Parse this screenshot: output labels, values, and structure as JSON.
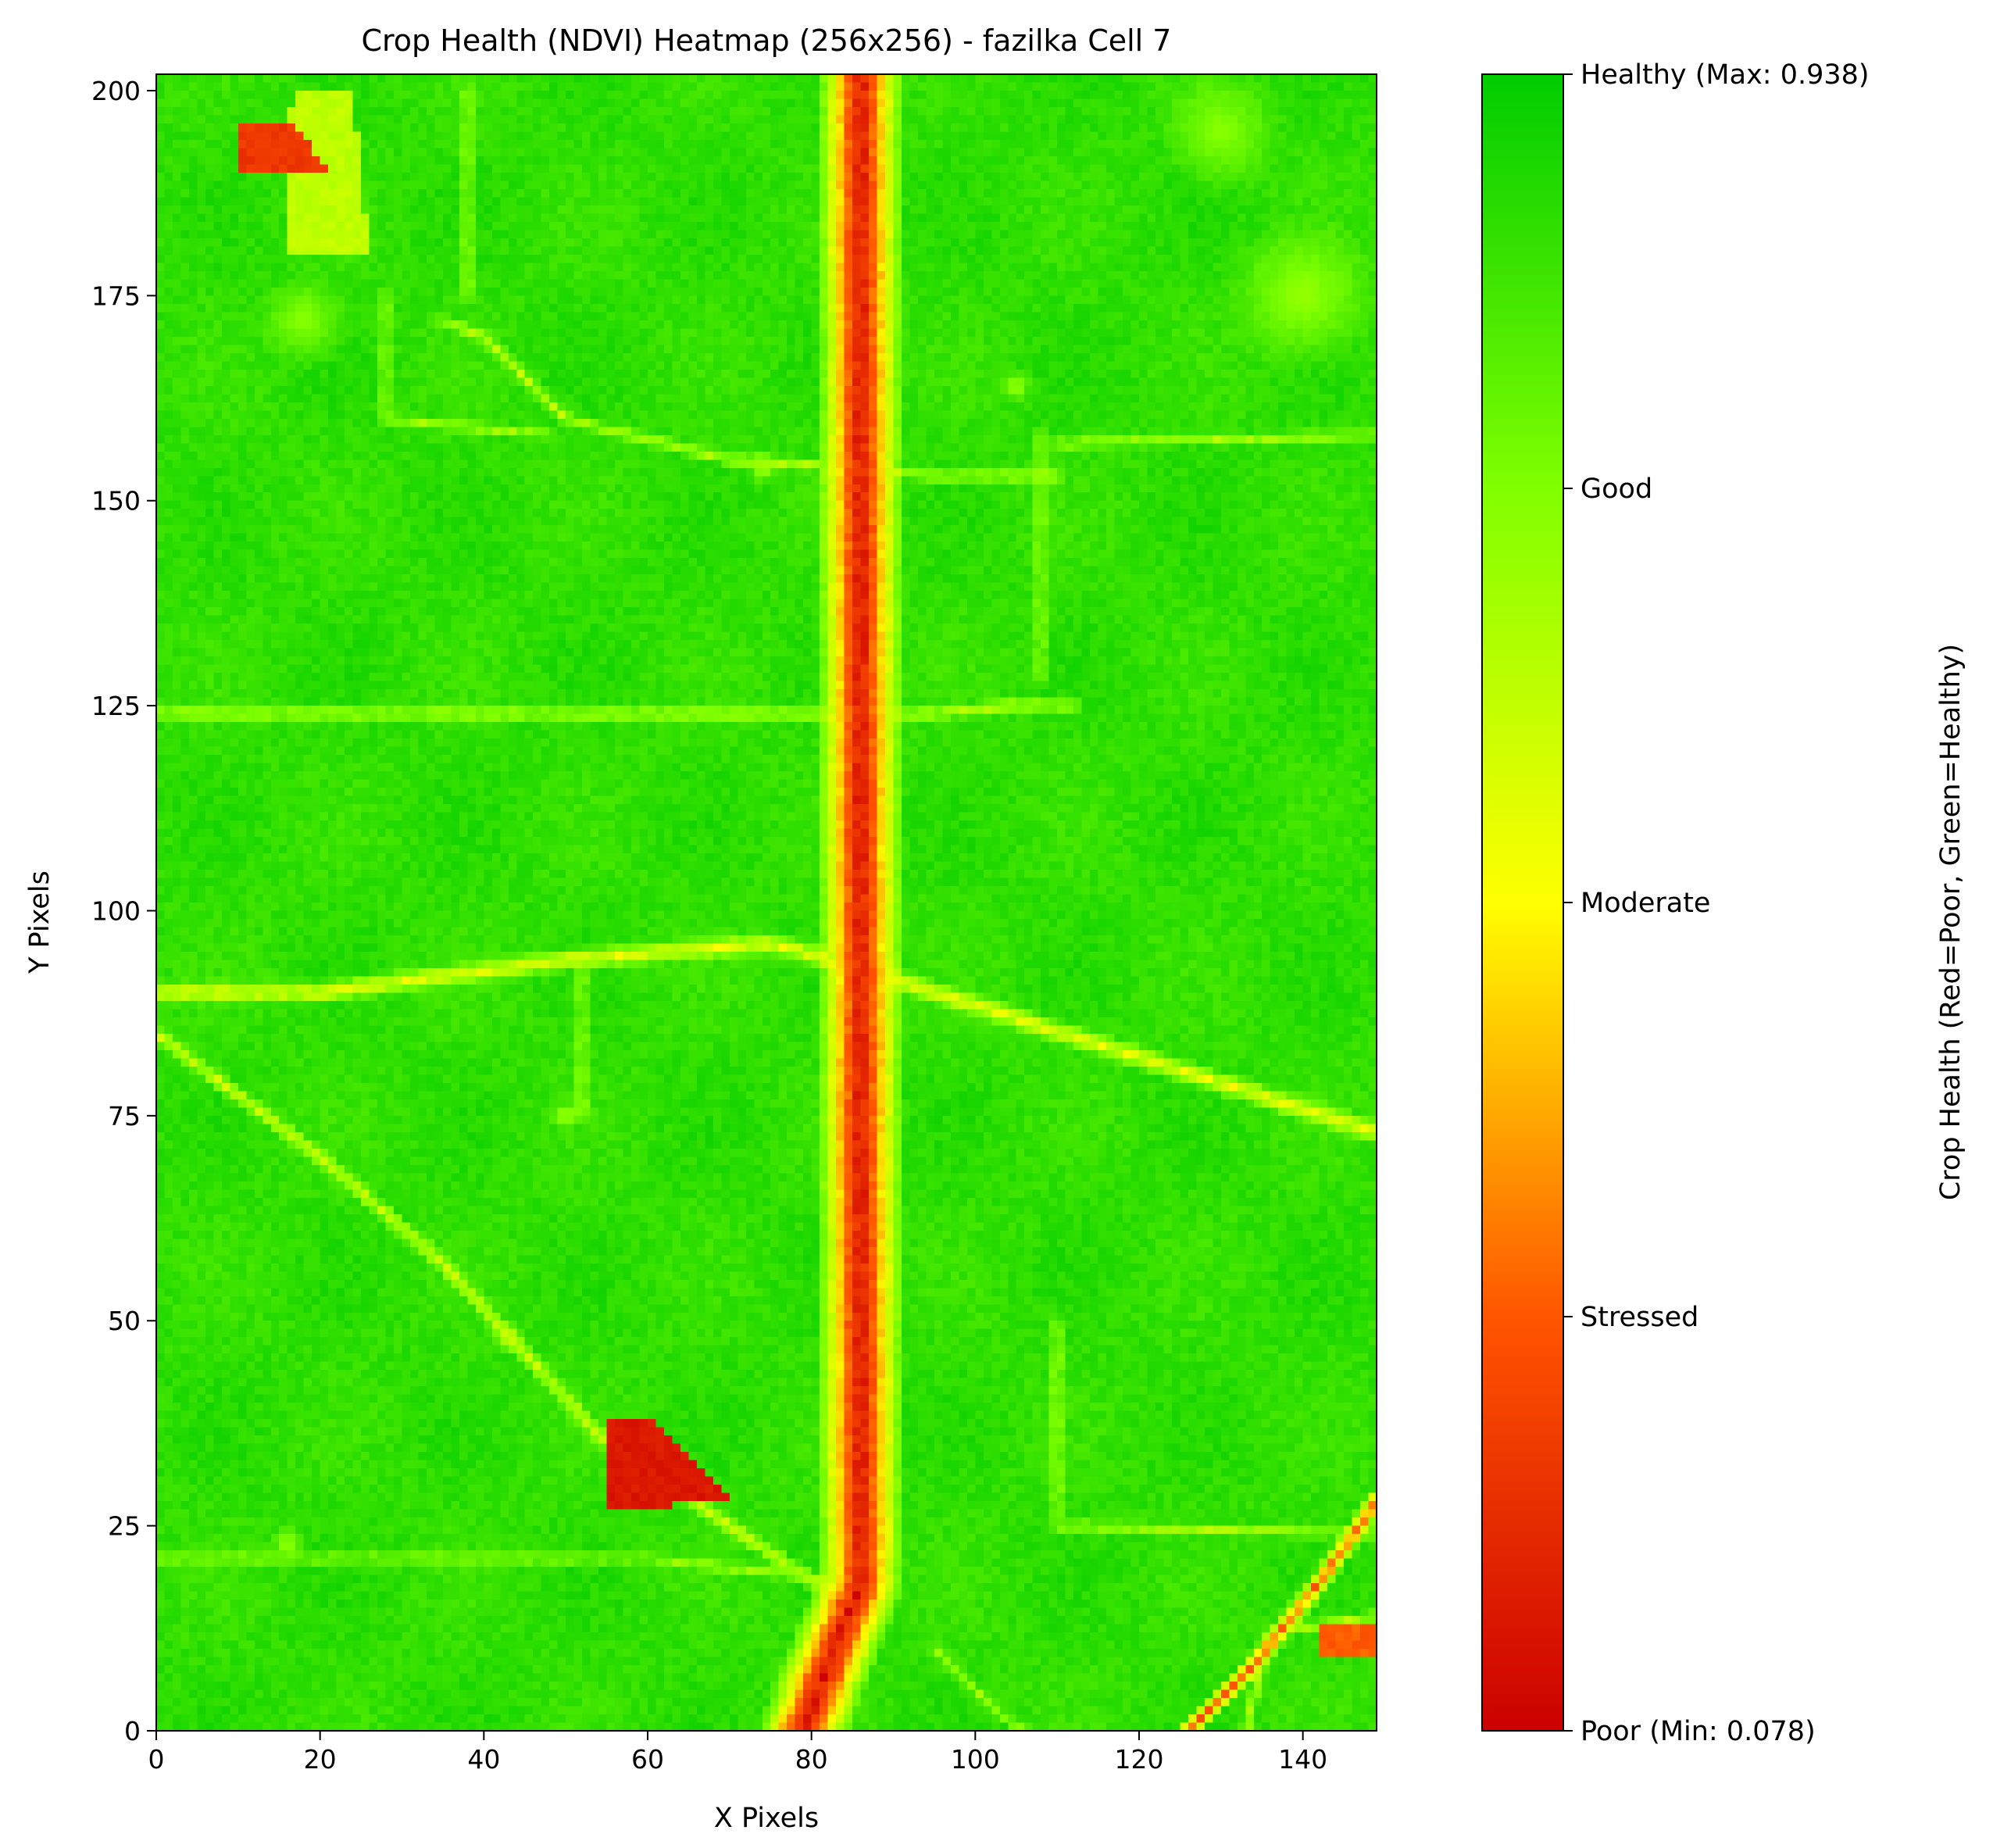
{
  "chart_data": {
    "type": "heatmap",
    "title": "Crop Health (NDVI) Heatmap (256x256) - fazilka Cell 7",
    "xlabel": "X Pixels",
    "ylabel": "Y Pixels",
    "xlim": [
      0,
      149
    ],
    "ylim": [
      0,
      202
    ],
    "x_ticks": [
      0,
      20,
      40,
      60,
      80,
      100,
      120,
      140
    ],
    "y_ticks": [
      0,
      25,
      50,
      75,
      100,
      125,
      150,
      175,
      200
    ],
    "colorbar": {
      "label": "Crop Health (Red=Poor, Green=Healthy)",
      "min": 0.078,
      "max": 0.938,
      "colors": [
        "#cc0000",
        "#ff5500",
        "#ffff00",
        "#80ff00",
        "#00cc00"
      ],
      "ticks": [
        {
          "value": 0.078,
          "label": "Poor (Min: 0.078)"
        },
        {
          "value": 0.293,
          "label": "Stressed"
        },
        {
          "value": 0.508,
          "label": "Moderate"
        },
        {
          "value": 0.723,
          "label": "Good"
        },
        {
          "value": 0.938,
          "label": "Healthy (Max: 0.938)"
        }
      ]
    },
    "background_ndvi": 0.86,
    "features": [
      {
        "kind": "line",
        "ndvi": 0.12,
        "width": 5.5,
        "points": [
          [
            79,
            0
          ],
          [
            82,
            8
          ],
          [
            86,
            18
          ],
          [
            86,
            100
          ],
          [
            86,
            202
          ]
        ]
      },
      {
        "kind": "line",
        "ndvi": 0.28,
        "width": 2.5,
        "points": [
          [
            79,
            0
          ],
          [
            82,
            8
          ],
          [
            86,
            18
          ],
          [
            86,
            202
          ]
        ]
      },
      {
        "kind": "line",
        "ndvi": 0.55,
        "width": 1.6,
        "points": [
          [
            0,
            90
          ],
          [
            20,
            90
          ],
          [
            50,
            94
          ],
          [
            75,
            96
          ],
          [
            86,
            93
          ],
          [
            95,
            90
          ],
          [
            149,
            73
          ]
        ]
      },
      {
        "kind": "line",
        "ndvi": 0.6,
        "width": 1.2,
        "points": [
          [
            0,
            85
          ],
          [
            20,
            70
          ],
          [
            35,
            57
          ],
          [
            55,
            35
          ],
          [
            85,
            15
          ]
        ]
      },
      {
        "kind": "line",
        "ndvi": 0.62,
        "width": 1.0,
        "points": [
          [
            0,
            124
          ],
          [
            86,
            124
          ],
          [
            95,
            124
          ],
          [
            104,
            125
          ],
          [
            112,
            125
          ]
        ]
      },
      {
        "kind": "line",
        "ndvi": 0.65,
        "width": 1.0,
        "points": [
          [
            35,
            172
          ],
          [
            40,
            170
          ],
          [
            50,
            160
          ],
          [
            70,
            155
          ],
          [
            86,
            154
          ],
          [
            95,
            153
          ],
          [
            110,
            153
          ]
        ]
      },
      {
        "kind": "line",
        "ndvi": 0.66,
        "width": 0.9,
        "points": [
          [
            110,
            157
          ],
          [
            149,
            158
          ]
        ]
      },
      {
        "kind": "line",
        "ndvi": 0.66,
        "width": 0.9,
        "points": [
          [
            108,
            158
          ],
          [
            108,
            128
          ]
        ]
      },
      {
        "kind": "line",
        "ndvi": 0.66,
        "width": 0.9,
        "points": [
          [
            110,
            50
          ],
          [
            110,
            25
          ],
          [
            149,
            24
          ]
        ]
      },
      {
        "kind": "line",
        "ndvi": 0.68,
        "width": 0.9,
        "points": [
          [
            0,
            21
          ],
          [
            60,
            21
          ],
          [
            86,
            18
          ]
        ]
      },
      {
        "kind": "line",
        "ndvi": 0.66,
        "width": 0.9,
        "points": [
          [
            52,
            94
          ],
          [
            52,
            75
          ]
        ]
      },
      {
        "kind": "line",
        "ndvi": 0.66,
        "width": 0.9,
        "points": [
          [
            38,
            200
          ],
          [
            38,
            175
          ]
        ]
      },
      {
        "kind": "line",
        "ndvi": 0.68,
        "width": 0.9,
        "points": [
          [
            28,
            175
          ],
          [
            28,
            160
          ],
          [
            48,
            158
          ]
        ]
      },
      {
        "kind": "line",
        "ndvi": 0.68,
        "width": 0.9,
        "points": [
          [
            95,
            10
          ],
          [
            103,
            2
          ],
          [
            106,
            0
          ]
        ]
      },
      {
        "kind": "line",
        "ndvi": 0.3,
        "width": 1.4,
        "points": [
          [
            126,
            0
          ],
          [
            134,
            8
          ],
          [
            142,
            18
          ],
          [
            149,
            28
          ]
        ]
      },
      {
        "kind": "line",
        "ndvi": 0.66,
        "width": 0.9,
        "points": [
          [
            133,
            0
          ],
          [
            136,
            12
          ],
          [
            149,
            14
          ]
        ]
      },
      {
        "kind": "poly",
        "ndvi": 0.14,
        "points": [
          [
            55,
            27
          ],
          [
            55,
            38
          ],
          [
            60,
            38
          ],
          [
            71,
            28
          ]
        ]
      },
      {
        "kind": "poly",
        "ndvi": 0.22,
        "points": [
          [
            10,
            190
          ],
          [
            10,
            196
          ],
          [
            17,
            196
          ],
          [
            21,
            190
          ]
        ]
      },
      {
        "kind": "poly",
        "ndvi": 0.3,
        "points": [
          [
            142,
            9
          ],
          [
            142,
            13
          ],
          [
            149,
            13
          ],
          [
            149,
            9
          ]
        ]
      },
      {
        "kind": "poly",
        "ndvi": 0.62,
        "points": [
          [
            16,
            195
          ],
          [
            17,
            200
          ],
          [
            24,
            200
          ],
          [
            26,
            180
          ],
          [
            16,
            180
          ]
        ]
      },
      {
        "kind": "blob",
        "ndvi": 0.68,
        "cx": 140,
        "cy": 175,
        "r": 10
      },
      {
        "kind": "blob",
        "ndvi": 0.7,
        "cx": 130,
        "cy": 195,
        "r": 8
      },
      {
        "kind": "blob",
        "ndvi": 0.7,
        "cx": 18,
        "cy": 172,
        "r": 6
      },
      {
        "kind": "blob",
        "ndvi": 0.64,
        "cx": 74,
        "cy": 154,
        "r": 2
      },
      {
        "kind": "blob",
        "ndvi": 0.6,
        "cx": 43,
        "cy": 48,
        "r": 2
      },
      {
        "kind": "blob",
        "ndvi": 0.66,
        "cx": 50,
        "cy": 75,
        "r": 2
      },
      {
        "kind": "blob",
        "ndvi": 0.66,
        "cx": 105,
        "cy": 164,
        "r": 2
      },
      {
        "kind": "blob",
        "ndvi": 0.66,
        "cx": 16,
        "cy": 23,
        "r": 2
      }
    ]
  }
}
